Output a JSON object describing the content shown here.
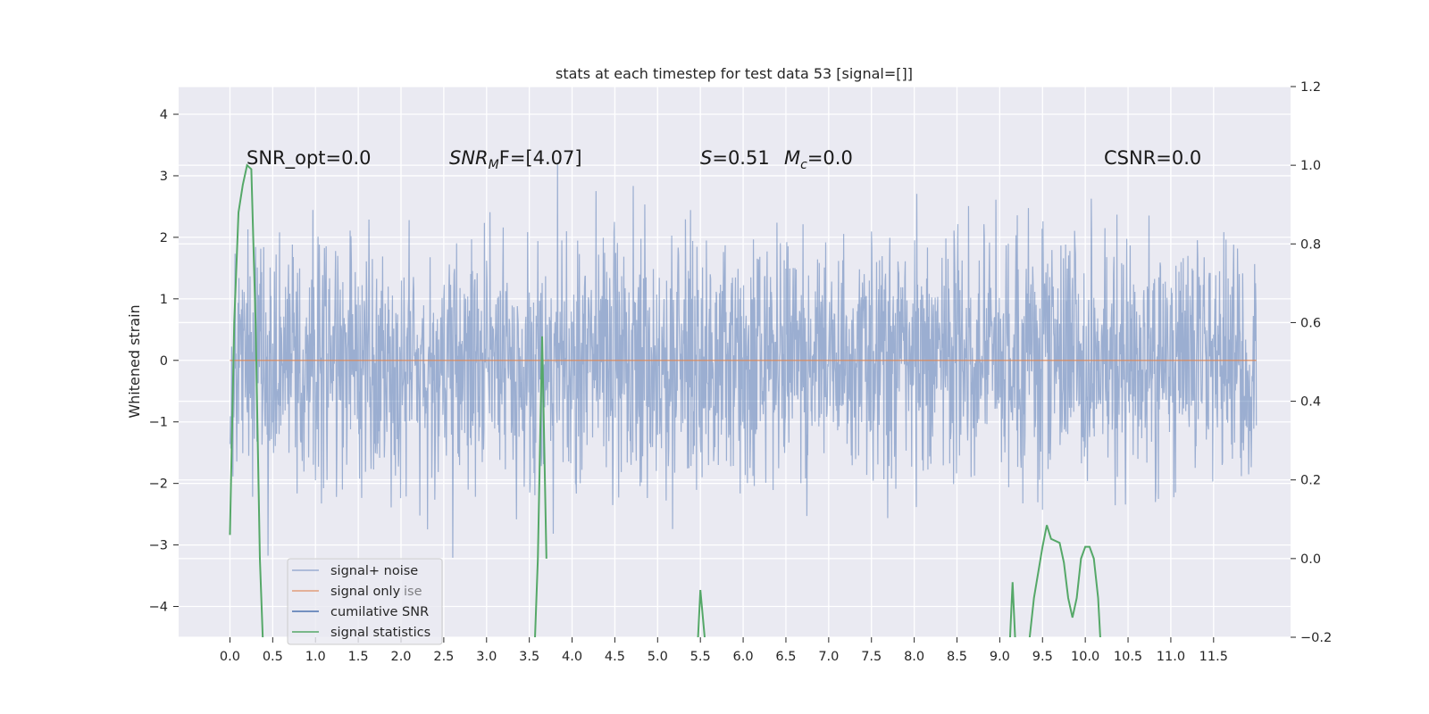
{
  "chart_data": {
    "type": "line",
    "title": "stats at each timestep for test data 53 [signal=[]]",
    "ylabel": "Whitened strain",
    "xlim": [
      -0.6,
      12.4
    ],
    "ylim_left": [
      -4.5,
      4.45
    ],
    "ylim_right": [
      -0.2,
      1.2
    ],
    "x_ticks": [
      "0.0",
      "0.5",
      "1.0",
      "1.5",
      "2.0",
      "2.5",
      "3.0",
      "3.5",
      "4.0",
      "4.5",
      "5.0",
      "5.5",
      "6.0",
      "6.5",
      "7.0",
      "7.5",
      "8.0",
      "8.5",
      "9.0",
      "9.5",
      "10.0",
      "10.5",
      "11.0",
      "11.5"
    ],
    "y_left_ticks": [
      "4",
      "3",
      "2",
      "1",
      "0",
      "−1",
      "−2",
      "−3",
      "−4"
    ],
    "y_right_ticks": [
      "1.2",
      "1.0",
      "0.8",
      "0.6",
      "0.4",
      "0.2",
      "0.0",
      "−0.2"
    ],
    "annotations": [
      {
        "text": "SNR_opt=0.0"
      },
      {
        "text": "SNR_MF=[4.07]",
        "base": "SNR",
        "sub": "M",
        "rest": "F=[4.07]"
      },
      {
        "text": "S=0.51",
        "base": "S",
        "rest": "=0.51"
      },
      {
        "text": "M_c=0.0",
        "base": "M",
        "sub": "c",
        "rest": "=0.0"
      },
      {
        "text": "CSNR=0.0"
      }
    ],
    "series": [
      {
        "name": "signal+ noise",
        "color": "#4c72b0",
        "axis": "left",
        "x_range": [
          0.0,
          12.0
        ],
        "y_envelope": [
          -3.8,
          4.1
        ],
        "style": "noise"
      },
      {
        "name": "signal only",
        "color": "#dd8452",
        "axis": "left",
        "x": [
          0.0,
          12.0
        ],
        "y": [
          0.0,
          0.0
        ]
      },
      {
        "name": "cumilative SNR",
        "color": "#4c72b0",
        "axis": "right",
        "x": [],
        "y": []
      },
      {
        "name": "signal statistics",
        "color": "#55a868",
        "axis": "right",
        "x": [
          0.0,
          0.05,
          0.1,
          0.15,
          0.2,
          0.25,
          0.3,
          0.35,
          0.4,
          3.55,
          3.6,
          3.65,
          3.7,
          5.45,
          5.5,
          5.55,
          9.1,
          9.15,
          9.2,
          9.3,
          9.4,
          9.5,
          9.55,
          9.6,
          9.7,
          9.75,
          9.8,
          9.85,
          9.9,
          9.95,
          10.0,
          10.05,
          10.1,
          10.15,
          10.2
        ],
        "y": [
          0.06,
          0.6,
          0.88,
          0.95,
          1.0,
          0.99,
          0.6,
          0.0,
          -0.3,
          -0.3,
          0.0,
          0.565,
          0.0,
          -0.3,
          -0.08,
          -0.2,
          -0.3,
          -0.06,
          -0.3,
          -0.3,
          -0.1,
          0.03,
          0.085,
          0.05,
          0.04,
          -0.01,
          -0.1,
          -0.15,
          -0.1,
          0.0,
          0.03,
          0.03,
          0.0,
          -0.1,
          -0.3
        ]
      }
    ],
    "legend": {
      "placement": "lower-left",
      "entries": [
        "signal+ noise",
        "signal only",
        "cumilative SNR",
        "signal statistics"
      ],
      "ghost_text": "ise"
    },
    "grid": true,
    "background": "#eaeaf2"
  }
}
